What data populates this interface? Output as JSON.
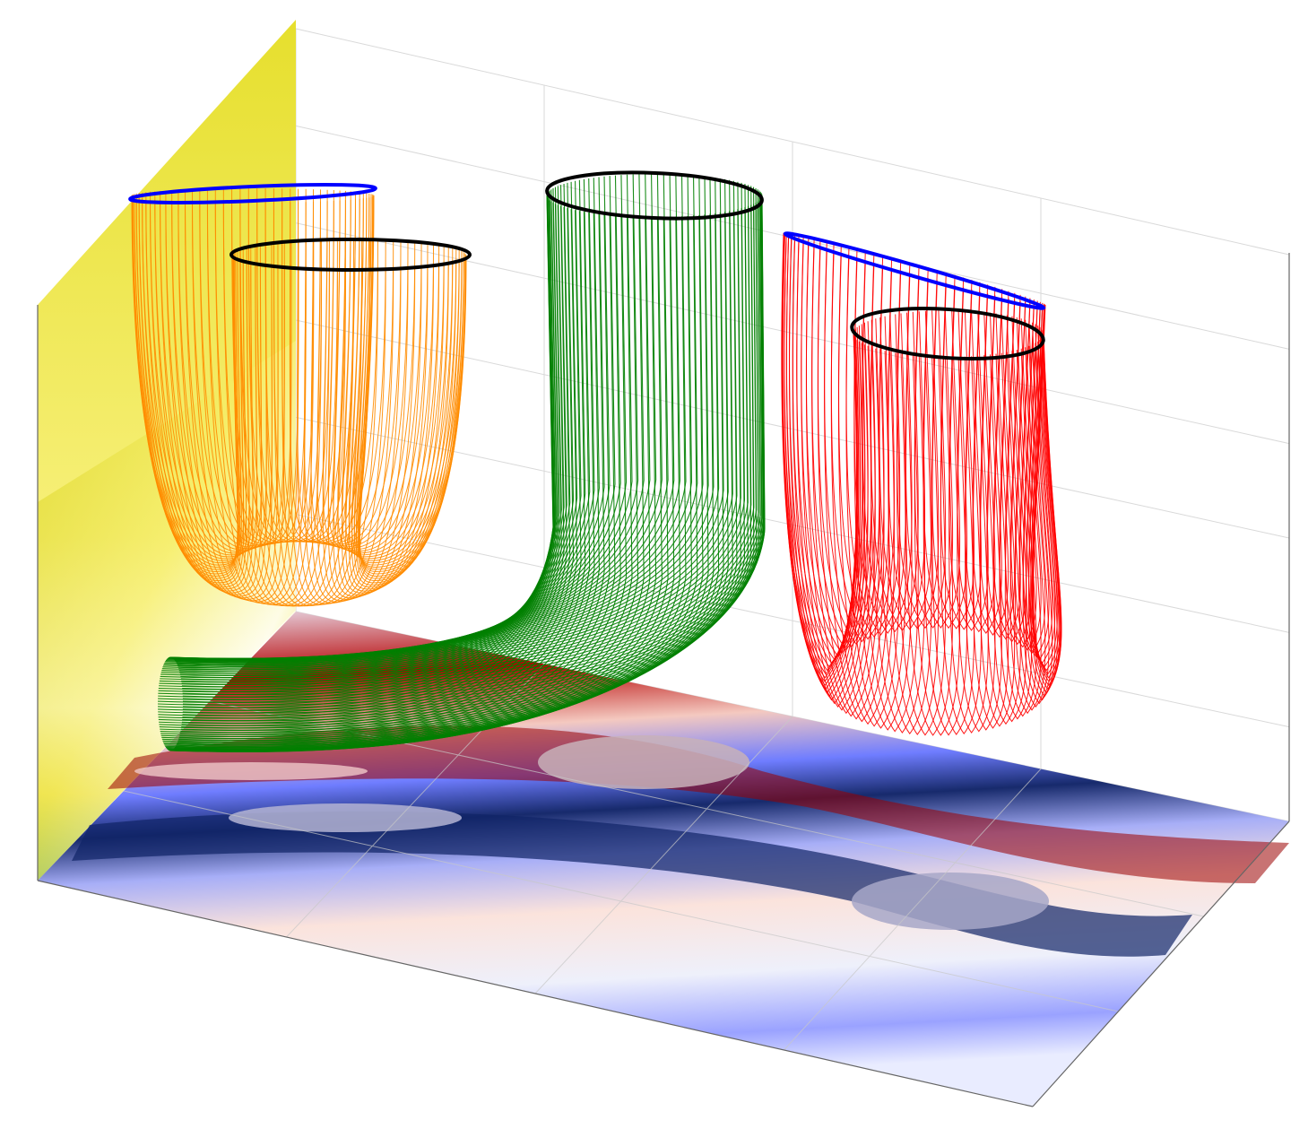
{
  "figure": {
    "colors": {
      "background": "#ffffff",
      "grid_line": "#d6d6d6",
      "box_edge": "#555555",
      "wall_yellow": "#e8e43a",
      "floor_red": "#b30000",
      "floor_dark_red": "#8b0000",
      "floor_blue": "#1a2f78",
      "floor_light_blue": "#9aa0ff",
      "grey_patch": "#b7aab8"
    },
    "tubes": [
      {
        "name": "orange-tube",
        "color": "#ff8c00",
        "cap_top_a": "#0000ff",
        "cap_top_b": "#000000"
      },
      {
        "name": "green-tube",
        "color": "#008000",
        "cap_top": "#000000"
      },
      {
        "name": "red-tube",
        "color": "#ff0000",
        "cap_top_a": "#0000ff",
        "cap_top_b": "#000000"
      }
    ]
  }
}
